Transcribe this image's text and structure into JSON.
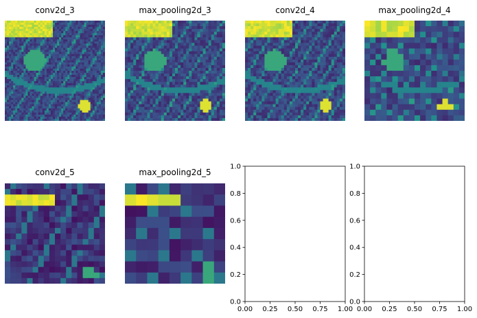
{
  "colormap": [
    "#440154",
    "#3b528b",
    "#21918c",
    "#5ec962",
    "#fde725"
  ],
  "chart_data": [
    {
      "type": "heatmap",
      "title": "conv2d_3",
      "axis": "off"
    },
    {
      "type": "heatmap",
      "title": "max_pooling2d_3",
      "axis": "off"
    },
    {
      "type": "heatmap",
      "title": "conv2d_4",
      "axis": "off"
    },
    {
      "type": "heatmap",
      "title": "max_pooling2d_4",
      "axis": "off"
    },
    {
      "type": "heatmap",
      "title": "conv2d_5",
      "axis": "off"
    },
    {
      "type": "heatmap",
      "title": "max_pooling2d_5",
      "axis": "off"
    },
    {
      "type": "empty_axes",
      "title": "",
      "xlim": [
        0,
        1
      ],
      "ylim": [
        0,
        1
      ],
      "xticks": [
        "0.00",
        "0.25",
        "0.50",
        "0.75",
        "1.00"
      ],
      "yticks": [
        "0.0",
        "0.2",
        "0.4",
        "0.6",
        "0.8",
        "1.0"
      ]
    },
    {
      "type": "empty_axes",
      "title": "",
      "xlim": [
        0,
        1
      ],
      "ylim": [
        0,
        1
      ],
      "xticks": [
        "0.00",
        "0.25",
        "0.50",
        "0.75",
        "1.00"
      ],
      "yticks": [
        "0.0",
        "0.2",
        "0.4",
        "0.6",
        "0.8",
        "1.0"
      ]
    }
  ]
}
